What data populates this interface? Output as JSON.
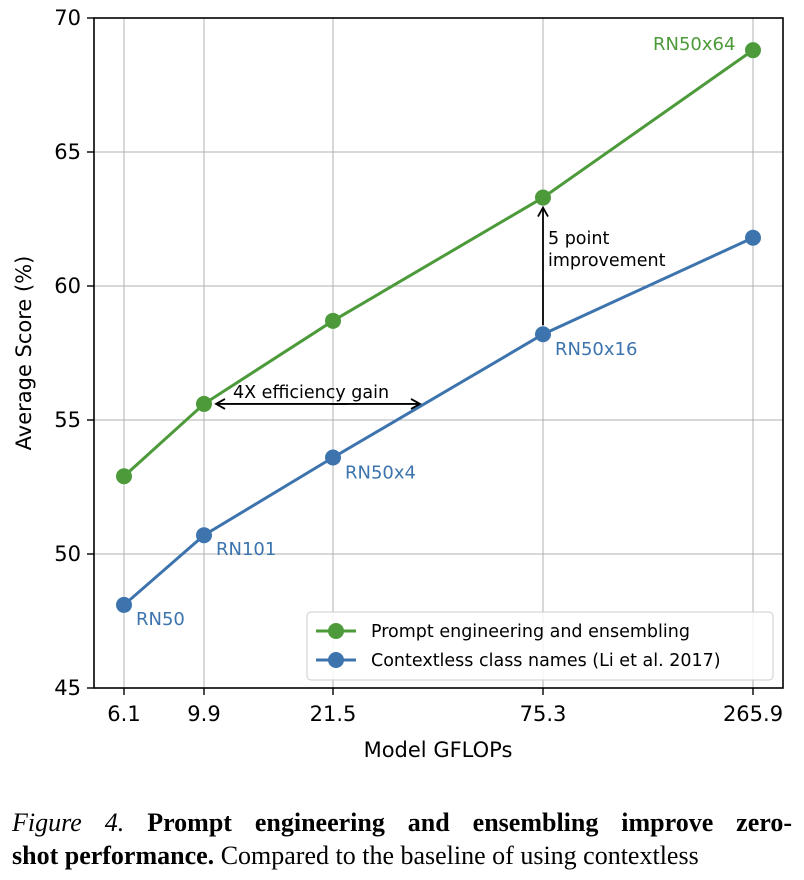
{
  "chart_data": {
    "type": "line",
    "title": "",
    "xlabel": "Model GFLOPs",
    "ylabel": "Average Score (%)",
    "categories": [
      "6.1",
      "9.9",
      "21.5",
      "75.3",
      "265.9"
    ],
    "ylim": [
      45,
      70
    ],
    "yticks": [
      "45",
      "50",
      "55",
      "60",
      "65",
      "70"
    ],
    "grid": true,
    "legend_position": "bottom-right",
    "series": [
      {
        "name": "Prompt engineering and ensembling",
        "color": "#4c9a3a",
        "values": [
          52.9,
          55.6,
          58.7,
          63.3,
          68.8
        ],
        "point_labels": [
          "",
          "",
          "",
          "",
          "RN50x64"
        ]
      },
      {
        "name": "Contextless class names (Li et al. 2017)",
        "color": "#3d74ad",
        "values": [
          48.1,
          50.7,
          53.6,
          58.2,
          61.8
        ],
        "point_labels": [
          "RN50",
          "RN101",
          "RN50x4",
          "RN50x16",
          ""
        ]
      }
    ],
    "annotations": [
      {
        "text": "4X efficiency gain",
        "type": "double-arrow",
        "from": [
          "9.9",
          55.6
        ],
        "to": [
          "21.5+",
          55.6
        ]
      },
      {
        "text_lines": [
          "5 point",
          "improvement"
        ],
        "type": "arrow",
        "from": [
          "75.3",
          58.2
        ],
        "to": [
          "75.3",
          63.3
        ]
      }
    ]
  },
  "caption": {
    "figure_label": "Figure 4.",
    "bold_text_line1": "Prompt engineering and ensembling improve zero-",
    "bold_text_line2": "shot performance.",
    "text_line2": "Compared to the baseline of using contextless"
  }
}
